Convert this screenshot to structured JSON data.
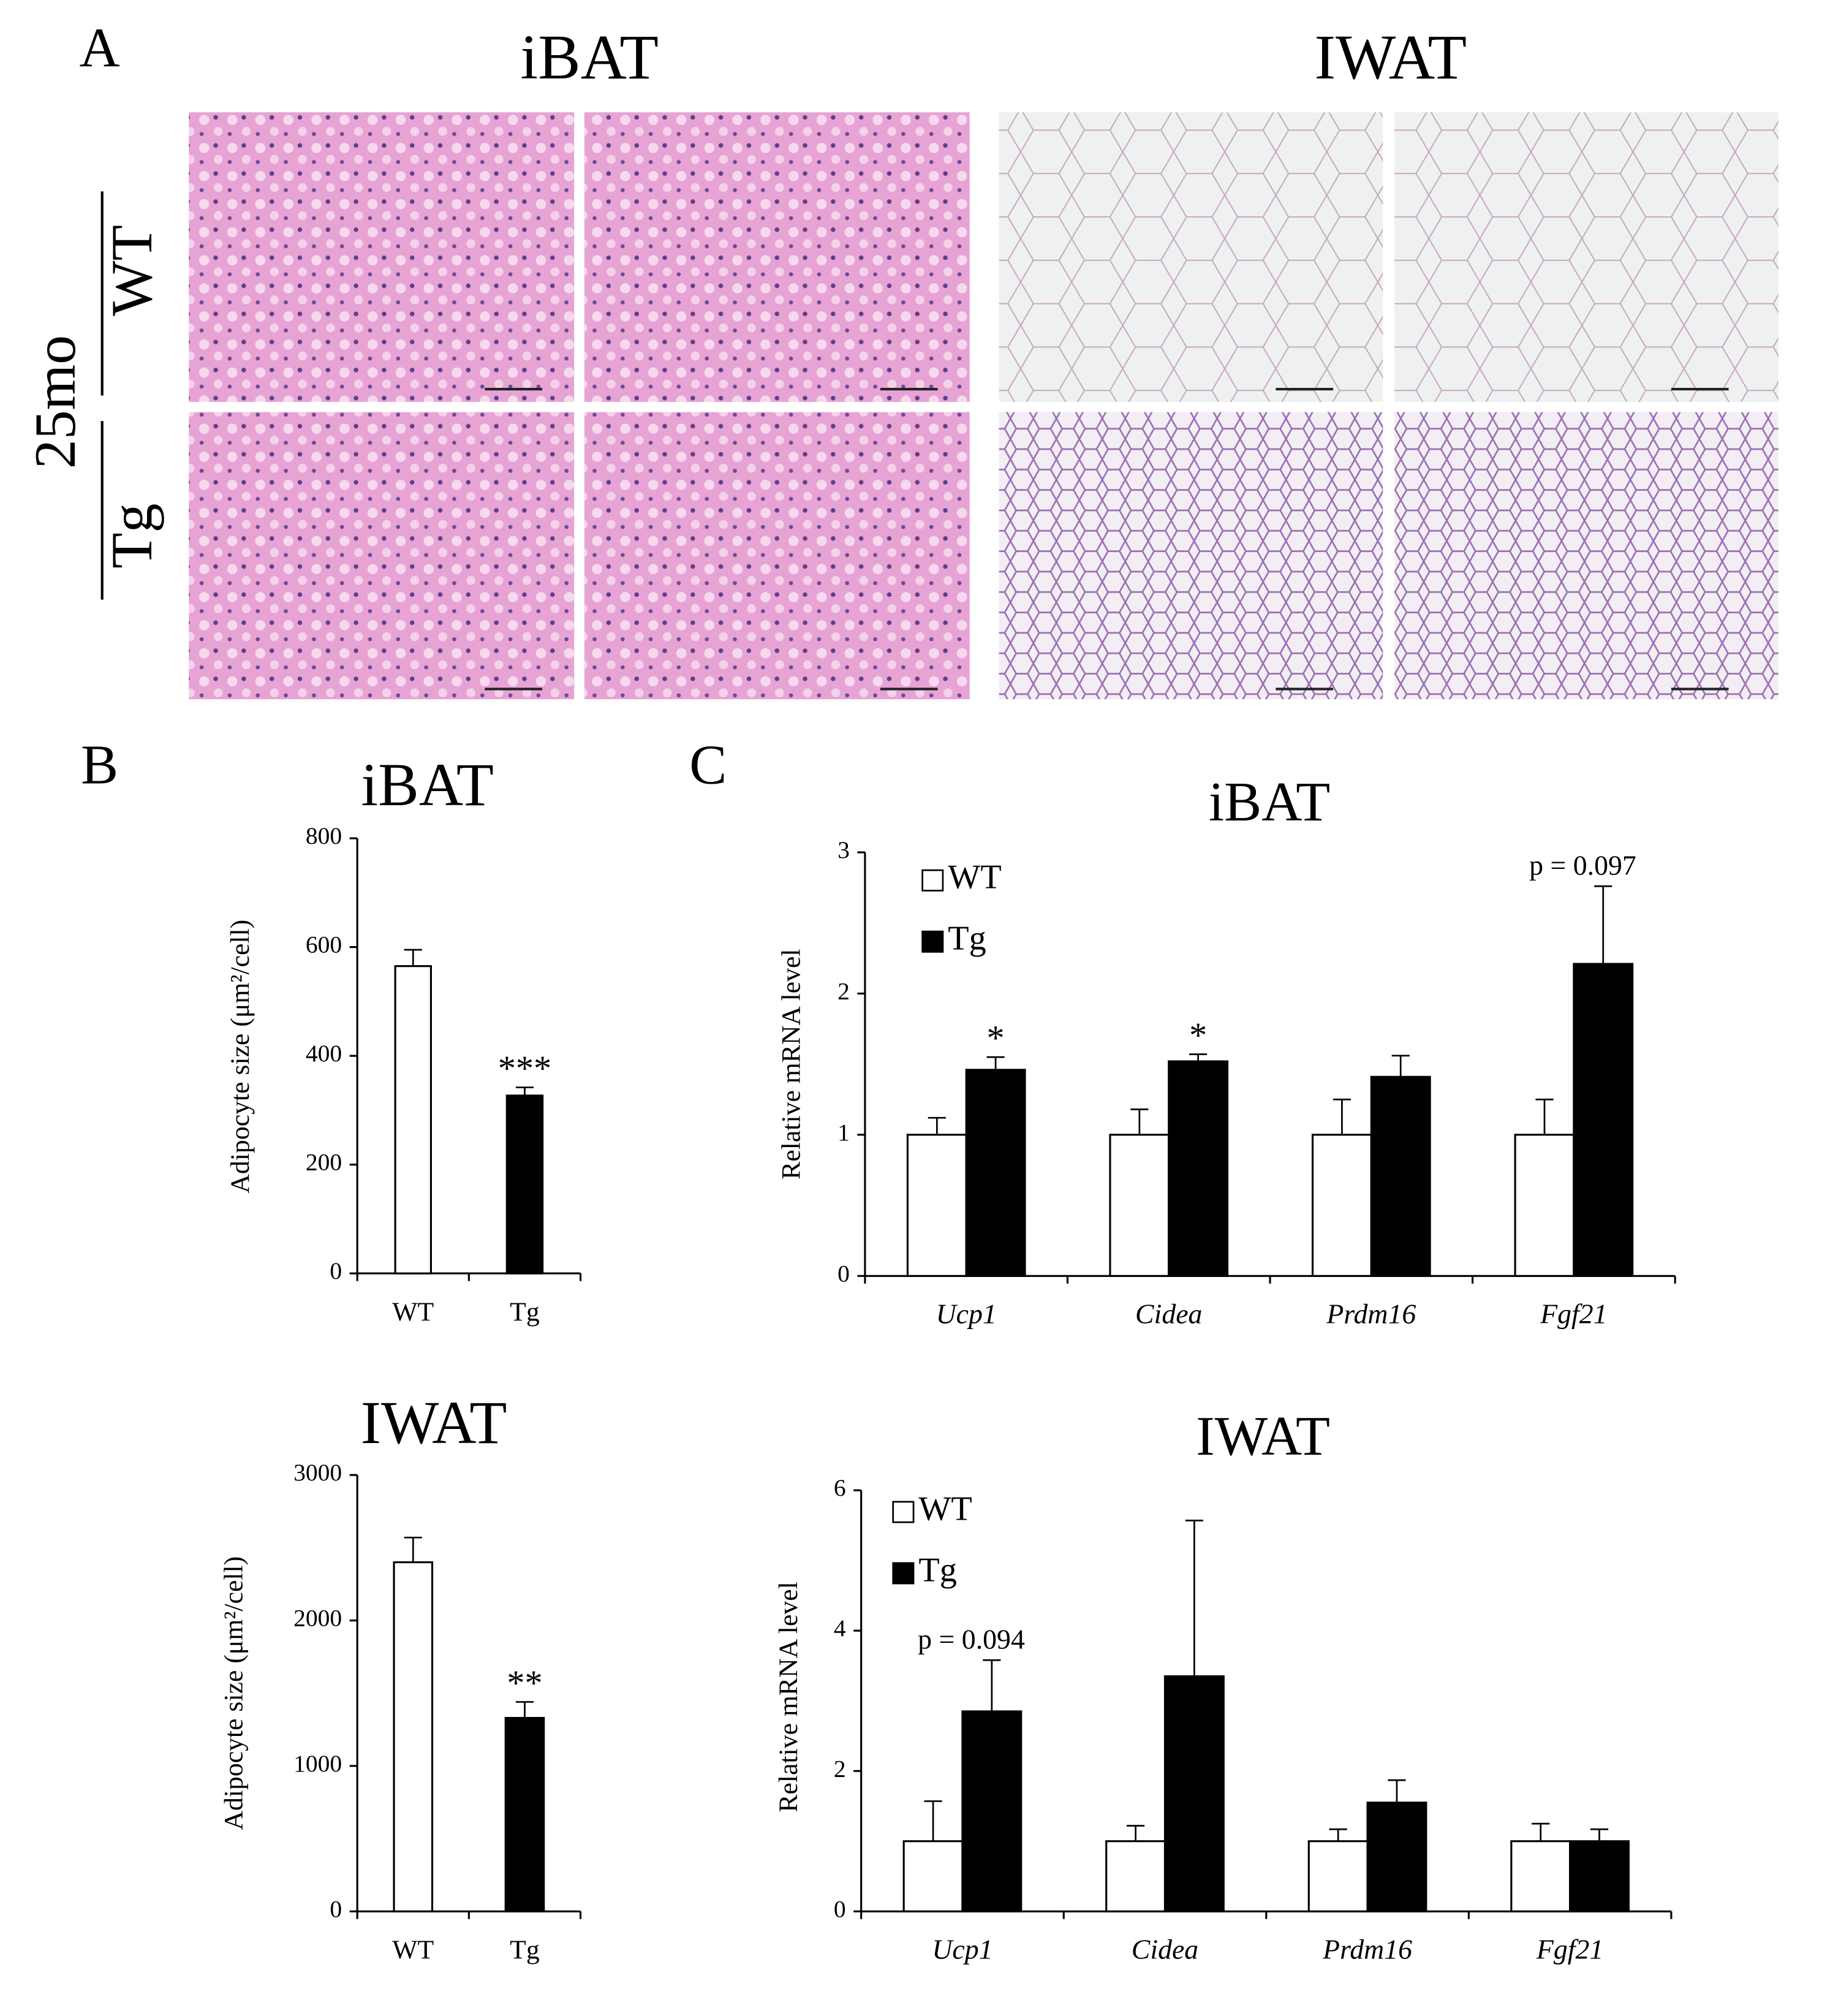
{
  "panel_labels": [
    "A",
    "B",
    "C"
  ],
  "histology": {
    "columns": [
      "iBAT",
      "IWAT"
    ],
    "age": "25mo",
    "rows": [
      "WT",
      "Tg"
    ]
  },
  "chart_data": [
    {
      "type": "bar",
      "title": "iBAT",
      "y_label": "Adipocyte size (μm²/cell)",
      "categories": [
        "WT",
        "Tg"
      ],
      "values": [
        565,
        327
      ],
      "errors": [
        30,
        15
      ],
      "colors": [
        "#ffffff",
        "#000000"
      ],
      "annotations": [
        null,
        "***"
      ],
      "ylim": [
        0,
        800
      ],
      "yticks": [
        0,
        200,
        400,
        600,
        800
      ]
    },
    {
      "type": "bar",
      "title": "IWAT",
      "y_label": "Adipocyte size (μm²/cell)",
      "categories": [
        "WT",
        "Tg"
      ],
      "values": [
        2400,
        1330
      ],
      "errors": [
        170,
        110
      ],
      "colors": [
        "#ffffff",
        "#000000"
      ],
      "annotations": [
        null,
        "**"
      ],
      "ylim": [
        0,
        3000
      ],
      "yticks": [
        0,
        1000,
        2000,
        3000
      ]
    },
    {
      "type": "bar",
      "title": "iBAT",
      "y_label": "Relative mRNA level",
      "categories": [
        "Ucp1",
        "Cidea",
        "Prdm16",
        "Fgf21"
      ],
      "series": [
        {
          "name": "WT",
          "color": "#ffffff",
          "values": [
            1,
            1,
            1,
            1
          ],
          "errors": [
            0.12,
            0.18,
            0.25,
            0.25
          ],
          "annotations": [
            null,
            null,
            null,
            null
          ]
        },
        {
          "name": "Tg",
          "color": "#000000",
          "values": [
            1.46,
            1.52,
            1.41,
            2.21
          ],
          "errors": [
            0.09,
            0.05,
            0.15,
            0.55
          ],
          "annotations": [
            "*",
            "*",
            null,
            "p = 0.097"
          ]
        }
      ],
      "ylim": [
        0,
        3
      ],
      "yticks": [
        0,
        1,
        2,
        3
      ],
      "legend": "upper left"
    },
    {
      "type": "bar",
      "title": "IWAT",
      "y_label": "Relative mRNA level",
      "categories": [
        "Ucp1",
        "Cidea",
        "Prdm16",
        "Fgf21"
      ],
      "series": [
        {
          "name": "WT",
          "color": "#ffffff",
          "values": [
            1,
            1,
            1,
            1
          ],
          "errors": [
            0.57,
            0.22,
            0.17,
            0.25
          ],
          "annotations": [
            null,
            null,
            null,
            null
          ]
        },
        {
          "name": "Tg",
          "color": "#000000",
          "values": [
            2.85,
            3.35,
            1.55,
            1.0
          ],
          "errors": [
            0.73,
            2.22,
            0.32,
            0.17
          ],
          "annotations": [
            "p = 0.094",
            null,
            null,
            null
          ]
        }
      ],
      "ylim": [
        0,
        6
      ],
      "yticks": [
        0,
        2,
        4,
        6
      ],
      "legend": "upper left"
    }
  ]
}
